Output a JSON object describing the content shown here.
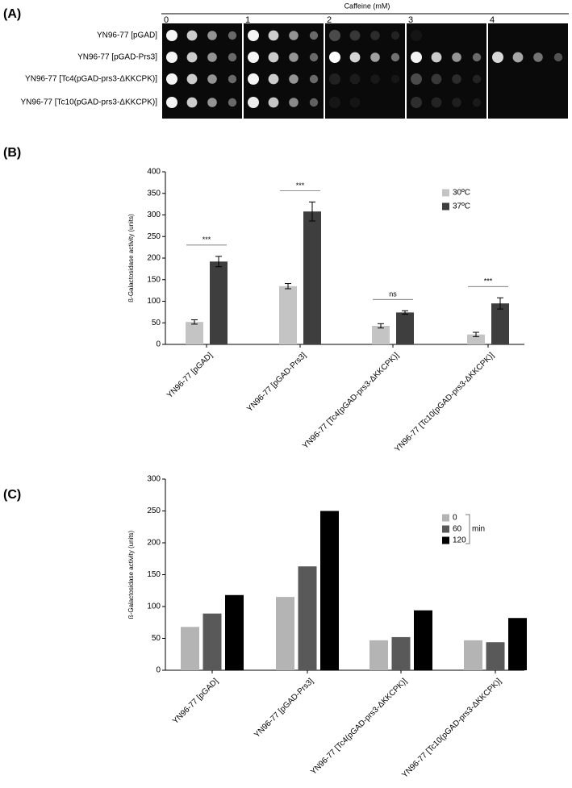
{
  "panel_a": {
    "label": "(A)",
    "title": "Caffeine (mM)",
    "concentrations": [
      "0",
      "1",
      "2",
      "3",
      "4"
    ],
    "strains": [
      "YN96-77 [pGAD]",
      "YN96-77 [pGAD-Prs3]",
      "YN96-77 [Tc4(pGAD-prs3-ΔKKCPK)]",
      "YN96-77 [Tc10(pGAD-prs3-ΔKKCPK)]"
    ]
  },
  "chart_data": [
    {
      "type": "bar",
      "label": "(B)",
      "ylabel": "ß-Galactosidase activity (units)",
      "categories": [
        "YN96-77 [pGAD]",
        "YN96-77 [pGAD-Prs3]",
        "YN96-77 [Tc4(pGAD-prs3-ΔKKCPK)]",
        "YN96-77 [Tc10(pGAD-prs3-ΔKKCPK)]"
      ],
      "series": [
        {
          "name": "30ºC",
          "color": "#c4c4c4",
          "values": [
            52,
            135,
            43,
            23
          ],
          "errors": [
            5,
            6,
            5,
            5
          ]
        },
        {
          "name": "37ºC",
          "color": "#3e3e3e",
          "values": [
            192,
            308,
            74,
            95
          ],
          "errors": [
            12,
            22,
            4,
            13
          ]
        }
      ],
      "significance": [
        "***",
        "***",
        "ns",
        "***"
      ],
      "ylim": [
        0,
        400
      ],
      "yticks": [
        0,
        50,
        100,
        150,
        200,
        250,
        300,
        350,
        400
      ],
      "legend": "upper right"
    },
    {
      "type": "bar",
      "label": "(C)",
      "ylabel": "ß-Galactosidase activity (units)",
      "categories": [
        "YN96-77 [pGAD]",
        "YN96-77 [pGAD-Prs3]",
        "YN96-77 [Tc4(pGAD-prs3-ΔKKCPK)]",
        "YN96-77 [Tc10(pGAD-prs3-ΔKKCPK)]"
      ],
      "series": [
        {
          "name": "0",
          "color": "#b4b4b4",
          "values": [
            68,
            115,
            47,
            47
          ]
        },
        {
          "name": "60",
          "color": "#595959",
          "values": [
            89,
            163,
            52,
            44
          ]
        },
        {
          "name": "120",
          "color": "#000000",
          "values": [
            118,
            250,
            94,
            82
          ]
        }
      ],
      "legend_unit": "min",
      "ylim": [
        0,
        300
      ],
      "yticks": [
        0,
        50,
        100,
        150,
        200,
        250,
        300
      ],
      "legend": "upper right"
    }
  ]
}
